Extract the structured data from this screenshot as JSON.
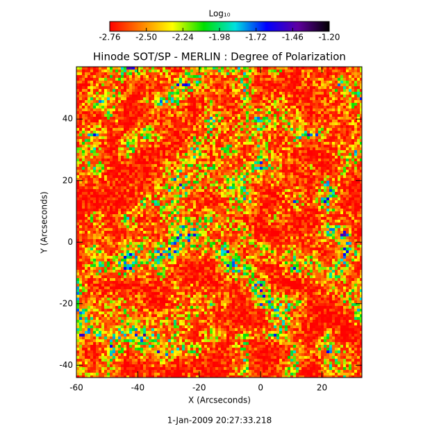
{
  "chart_data": {
    "type": "heatmap",
    "title": "Hinode SOT/SP - MERLIN : Degree of Polarization",
    "xlabel": "X (Arcseconds)",
    "ylabel": "Y (Arcseconds)",
    "footer": "1-Jan-2009 20:27:33.218",
    "xlim": [
      -60,
      33
    ],
    "ylim": [
      -44,
      57
    ],
    "xticks": [
      -60,
      -40,
      -20,
      0,
      20
    ],
    "yticks": [
      -40,
      -20,
      0,
      20,
      40
    ],
    "colorbar": {
      "label": "Log₁₀",
      "lim": [
        -2.76,
        -1.2
      ],
      "ticks": [
        -2.76,
        {
          "value": -2.5,
          "label": "-2.50"
        },
        -2.24,
        -1.98,
        -1.72,
        -1.46,
        {
          "value": -1.2,
          "label": "-1.20"
        }
      ],
      "colormap": [
        "#ff0000",
        "#ff8000",
        "#ffff00",
        "#00e000",
        "#00e0e0",
        "#0000ff",
        "#6000a0",
        "#000000"
      ]
    }
  }
}
